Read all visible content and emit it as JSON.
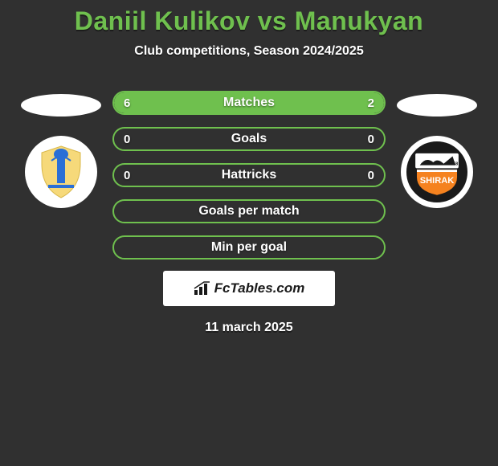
{
  "title": "Daniil Kulikov vs Manukyan",
  "subtitle": "Club competitions, Season 2024/2025",
  "date": "11 march 2025",
  "brand": "FcTables.com",
  "colors": {
    "accent": "#6fc04e",
    "bg": "#303030",
    "text": "#ffffff",
    "brand_bg": "#ffffff",
    "brand_text": "#1a1a1a"
  },
  "stats": [
    {
      "label": "Matches",
      "left_val": "6",
      "right_val": "2",
      "left_pct": 75,
      "right_pct": 25
    },
    {
      "label": "Goals",
      "left_val": "0",
      "right_val": "0",
      "left_pct": 0,
      "right_pct": 0
    },
    {
      "label": "Hattricks",
      "left_val": "0",
      "right_val": "0",
      "left_pct": 0,
      "right_pct": 0
    },
    {
      "label": "Goals per match",
      "left_val": "",
      "right_val": "",
      "left_pct": 0,
      "right_pct": 0
    },
    {
      "label": "Min per goal",
      "left_val": "",
      "right_val": "",
      "left_pct": 0,
      "right_pct": 0
    }
  ],
  "left_club": {
    "name": "club-left",
    "bg": "#ffffff"
  },
  "right_club": {
    "name": "Shirak",
    "bg": "#1a1a1a",
    "accent": "#f5821f"
  }
}
